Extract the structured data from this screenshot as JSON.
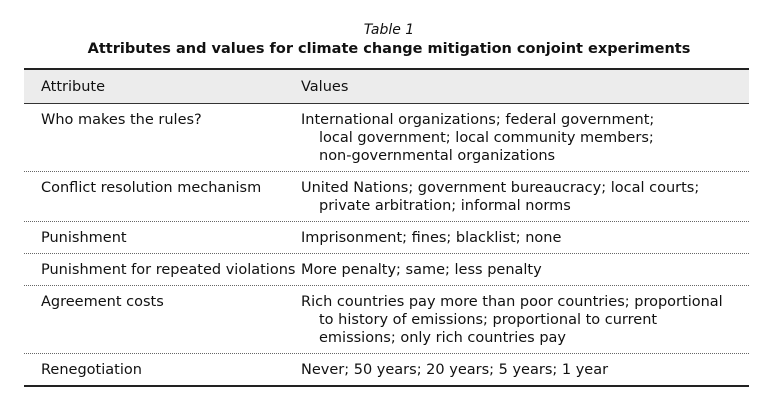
{
  "caption": {
    "label": "Table 1",
    "title": "Attributes and values for climate change mitigation conjoint experiments"
  },
  "table": {
    "headers": [
      "Attribute",
      "Values"
    ],
    "rows": [
      {
        "attribute": "Who makes the rules?",
        "value_lines": [
          "International organizations; federal government;",
          "local government; local community members;",
          "non-governmental organizations"
        ]
      },
      {
        "attribute": "Conflict resolution mechanism",
        "value_lines": [
          "United Nations; government bureaucracy; local courts;",
          "private arbitration; informal norms"
        ]
      },
      {
        "attribute": "Punishment",
        "value_lines": [
          "Imprisonment; fines; blacklist; none"
        ]
      },
      {
        "attribute": "Punishment for repeated violations",
        "value_lines": [
          "More penalty; same; less penalty"
        ]
      },
      {
        "attribute": "Agreement costs",
        "value_lines": [
          "Rich countries pay more than poor countries; proportional",
          "to history of emissions; proportional to current",
          "emissions; only rich countries pay"
        ]
      },
      {
        "attribute": "Renegotiation",
        "value_lines": [
          "Never; 50 years; 20 years; 5 years; 1 year"
        ]
      }
    ]
  }
}
